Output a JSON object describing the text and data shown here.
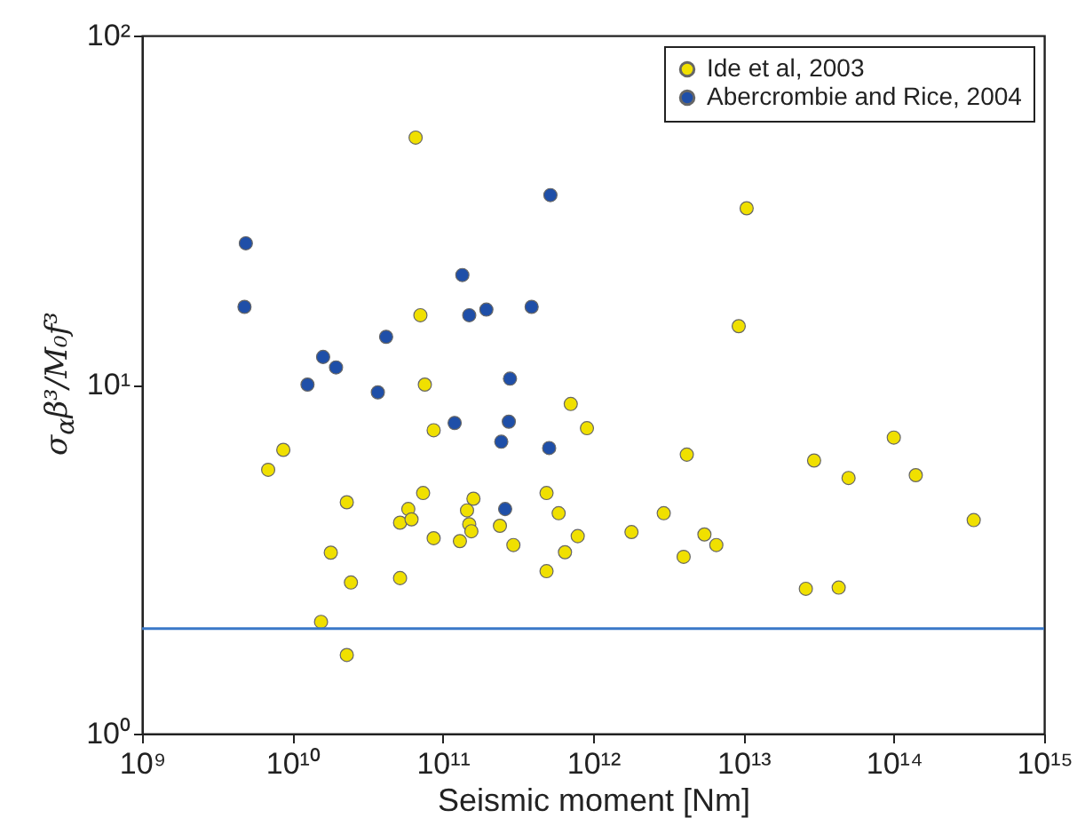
{
  "chart_data": {
    "type": "scatter",
    "xlabel": "Seismic moment [Nm]",
    "ylabel": "σ$_{α}$β³/M₀f³",
    "log": "xy",
    "xlim": [
      1000000000.0,
      1000000000000000.0
    ],
    "ylim": [
      1,
      100
    ],
    "xticks": [
      {
        "value": 1000000000.0,
        "label": "10⁹"
      },
      {
        "value": 10000000000.0,
        "label": "10¹⁰"
      },
      {
        "value": 100000000000.0,
        "label": "10¹¹"
      },
      {
        "value": 1000000000000.0,
        "label": "10¹²"
      },
      {
        "value": 10000000000000.0,
        "label": "10¹³"
      },
      {
        "value": 100000000000000.0,
        "label": "10¹⁴"
      },
      {
        "value": 1000000000000000.0,
        "label": "10¹⁵"
      }
    ],
    "yticks": [
      {
        "value": 1,
        "label": "10⁰"
      },
      {
        "value": 10,
        "label": "10¹"
      },
      {
        "value": 100,
        "label": "10²"
      }
    ],
    "grid": false,
    "legend": "top right",
    "marker": "circle",
    "ref_lines": [
      {
        "axis": "y",
        "value": 2,
        "color": "#3a78c8"
      }
    ],
    "series": [
      {
        "name": "Ide et al, 2003",
        "color": "#f0e000",
        "x": [
          66000000000.0,
          71000000000.0,
          76000000000.0,
          87000000000.0,
          6900000000.0,
          8700000000.0,
          23000000000.0,
          15500000000.0,
          23000000000.0,
          18000000000.0,
          24500000000.0,
          52000000000.0,
          52000000000.0,
          59000000000.0,
          62000000000.0,
          74000000000.0,
          87000000000.0,
          130000000000.0,
          145000000000.0,
          160000000000.0,
          150000000000.0,
          155000000000.0,
          240000000000.0,
          295000000000.0,
          490000000000.0,
          590000000000.0,
          490000000000.0,
          650000000000.0,
          710000000000.0,
          790000000000.0,
          910000000000.0,
          1800000000000.0,
          2950000000000.0,
          4000000000000.0,
          4200000000000.0,
          5500000000000.0,
          6600000000000.0,
          9300000000000.0,
          10500000000000.0,
          26000000000000.0,
          29500000000000.0,
          43000000000000.0,
          50000000000000.0,
          100000000000000.0,
          140000000000000.0,
          340000000000000.0
        ],
        "values": [
          51,
          15.8,
          10.0,
          7.4,
          5.7,
          6.5,
          4.6,
          2.09,
          1.68,
          3.3,
          2.71,
          2.79,
          4.02,
          4.4,
          4.11,
          4.89,
          3.63,
          3.56,
          4.36,
          4.71,
          3.98,
          3.8,
          3.94,
          3.47,
          4.89,
          4.28,
          2.92,
          3.31,
          8.8,
          3.68,
          7.5,
          3.78,
          4.28,
          3.21,
          6.3,
          3.72,
          3.47,
          14.7,
          32,
          2.6,
          6.06,
          2.62,
          5.4,
          7.05,
          5.5,
          4.09
        ]
      },
      {
        "name": "Abercrombie and Rice, 2004",
        "color": "#1f4fa8",
        "x": [
          4900000000.0,
          4800000000.0,
          12600000000.0,
          16000000000.0,
          19500000000.0,
          37000000000.0,
          42000000000.0,
          120000000000.0,
          135000000000.0,
          150000000000.0,
          195000000000.0,
          245000000000.0,
          275000000000.0,
          280000000000.0,
          260000000000.0,
          390000000000.0,
          510000000000.0,
          520000000000.0
        ],
        "values": [
          25.4,
          16.7,
          10,
          12.0,
          11.2,
          9.5,
          13.7,
          7.76,
          20.6,
          15.8,
          16.4,
          6.86,
          7.83,
          10.4,
          4.4,
          16.7,
          6.58,
          34.9
        ]
      }
    ]
  }
}
